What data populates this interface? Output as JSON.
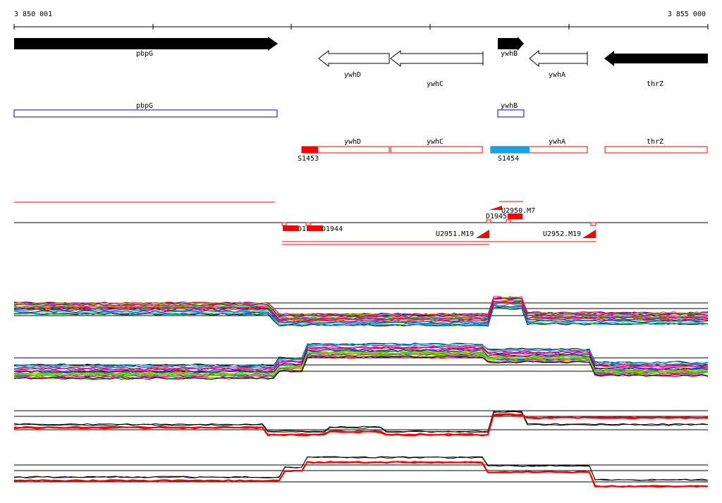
{
  "ruler": {
    "start_label": "3 850 001",
    "end_label": "3 855 000"
  },
  "genes_track": {
    "items": [
      {
        "id": "pbpG",
        "label": "pbpG",
        "strand": "+",
        "style": "filled"
      },
      {
        "id": "ywhD",
        "label": "ywhD",
        "strand": "-",
        "style": "outline"
      },
      {
        "id": "ywhC",
        "label": "ywhC",
        "strand": "-",
        "style": "outline"
      },
      {
        "id": "ywhB",
        "label": "ywhB",
        "strand": "+",
        "style": "filled"
      },
      {
        "id": "ywhA",
        "label": "ywhA",
        "strand": "-",
        "style": "outline"
      },
      {
        "id": "thrZ",
        "label": "thrZ",
        "strand": "-",
        "style": "filled"
      }
    ]
  },
  "blue_track": {
    "items": [
      {
        "label": "pbpG"
      },
      {
        "label": "ywhB"
      }
    ]
  },
  "red_track": {
    "items": [
      {
        "label": "ywhD"
      },
      {
        "label": "ywhC"
      },
      {
        "label": "ywhA"
      },
      {
        "label": "thrZ"
      }
    ],
    "markers": [
      {
        "label": "S1453",
        "color": "#ff0000"
      },
      {
        "label": "S1454",
        "color": "#1ba1e2"
      }
    ]
  },
  "features_track": {
    "labels": {
      "u2950": "U2950.M7",
      "d1945": "D1945",
      "d1943": "D1",
      "d1944": "D1944",
      "u2951": "U2951.M19",
      "u2952": "U2952.M19"
    }
  },
  "colors": {
    "gene_fill": "#000000",
    "blue_outline": "#0000cc",
    "red_outline": "#ff0000",
    "feature_red": "#ff0000",
    "s1454_fill": "#1ba1e2"
  }
}
